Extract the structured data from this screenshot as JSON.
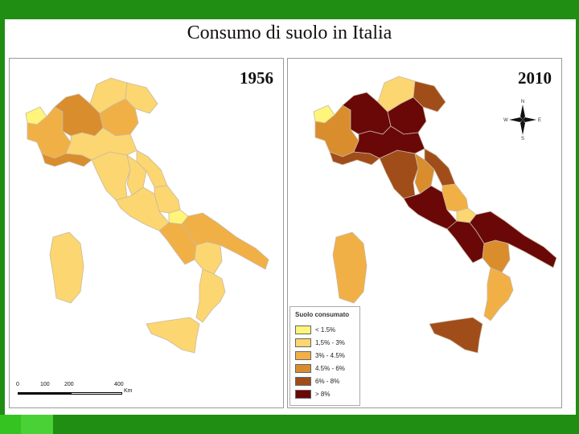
{
  "title": "Consumo di suolo in Italia",
  "maps": [
    {
      "year": "1956"
    },
    {
      "year": "2010"
    }
  ],
  "scale_bar": {
    "ticks": [
      "0",
      "100",
      "200",
      "400"
    ],
    "unit": "Km"
  },
  "compass": {
    "n": "N",
    "s": "S",
    "e": "E",
    "w": "W"
  },
  "legend": {
    "title": "Suolo consumato",
    "items": [
      {
        "label": "< 1.5%",
        "color": "#fff57a"
      },
      {
        "label": "1,5% - 3%",
        "color": "#fcd670"
      },
      {
        "label": "3% - 4.5%",
        "color": "#f1b046"
      },
      {
        "label": "4.5% - 6%",
        "color": "#d98d2d"
      },
      {
        "label": "6% - 8%",
        "color": "#a14d1a"
      },
      {
        "label": "> 8%",
        "color": "#6a0808"
      }
    ]
  },
  "regions_1956": {
    "Valle d'Aosta": "#fff57a",
    "Piemonte": "#f1b046",
    "Lombardia": "#d98d2d",
    "Trentino": "#fcd670",
    "Veneto": "#f1b046",
    "Friuli": "#fcd670",
    "Liguria": "#d98d2d",
    "Emilia-Romagna": "#fcd670",
    "Toscana": "#fcd670",
    "Umbria": "#fcd670",
    "Marche": "#fcd670",
    "Lazio": "#fcd670",
    "Abruzzo": "#fcd670",
    "Molise": "#fff57a",
    "Campania": "#f1b046",
    "Puglia": "#f1b046",
    "Basilicata": "#fcd670",
    "Calabria": "#fcd670",
    "Sicilia": "#fcd670",
    "Sardegna": "#fcd670"
  },
  "regions_2010": {
    "Valle d'Aosta": "#fff57a",
    "Piemonte": "#d98d2d",
    "Lombardia": "#6a0808",
    "Trentino": "#fcd670",
    "Veneto": "#6a0808",
    "Friuli": "#a14d1a",
    "Liguria": "#a14d1a",
    "Emilia-Romagna": "#6a0808",
    "Toscana": "#a14d1a",
    "Umbria": "#d98d2d",
    "Marche": "#a14d1a",
    "Lazio": "#6a0808",
    "Abruzzo": "#f1b046",
    "Molise": "#fcd670",
    "Campania": "#6a0808",
    "Puglia": "#6a0808",
    "Basilicata": "#d98d2d",
    "Calabria": "#f1b046",
    "Sicilia": "#a14d1a",
    "Sardegna": "#f1b046"
  }
}
